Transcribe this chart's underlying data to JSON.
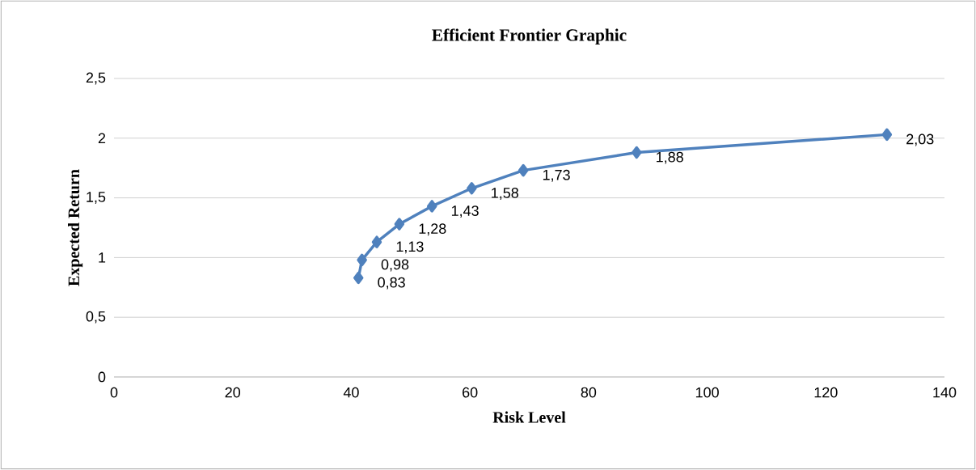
{
  "chart_data": {
    "type": "line",
    "title": "Efficient Frontier Graphic",
    "xlabel": "Risk Level",
    "ylabel": "Expected Return",
    "x": [
      41.2,
      41.8,
      44.3,
      48.1,
      53.6,
      60.3,
      69.0,
      88.1,
      130.3
    ],
    "series": [
      {
        "color": "#4f81bd",
        "values": [
          0.83,
          0.98,
          1.13,
          1.28,
          1.43,
          1.58,
          1.73,
          1.88,
          2.03
        ]
      }
    ],
    "value_labels": [
      "0,83",
      "0,98",
      "1,13",
      "1,28",
      "1,43",
      "1,58",
      "1,73",
      "1,88",
      "2,03"
    ],
    "xlim": [
      0,
      140
    ],
    "xticks": [
      0,
      20,
      40,
      60,
      80,
      100,
      120,
      140
    ],
    "ylim": [
      0,
      2.5
    ],
    "yticks": [
      0,
      {
        "value": 0.5,
        "label": "0,5"
      },
      1,
      {
        "value": 1.5,
        "label": "1,5"
      },
      2,
      {
        "value": 2.5,
        "label": "2,5"
      }
    ],
    "grid": "y",
    "marker": "diamond",
    "line_style": "solid"
  }
}
